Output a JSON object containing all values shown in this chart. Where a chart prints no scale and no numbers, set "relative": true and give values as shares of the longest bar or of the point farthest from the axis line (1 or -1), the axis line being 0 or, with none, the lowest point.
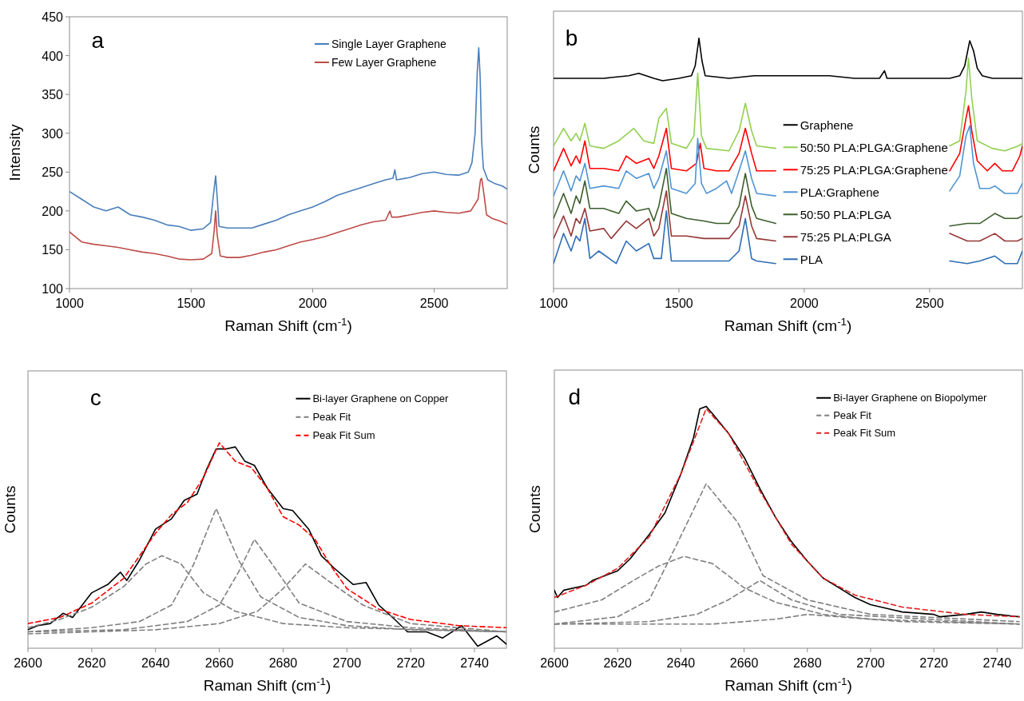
{
  "chart_data": [
    {
      "type": "line",
      "annotations": [
        "a"
      ],
      "xlabel": "Raman Shift (cm$^{-1}$)",
      "ylabel": "Intensity",
      "xlim": [
        1000,
        2800
      ],
      "xticks": [
        1000,
        1500,
        2000,
        2500
      ],
      "ylim": [
        100,
        450
      ],
      "yticks": [
        100,
        150,
        200,
        250,
        300,
        350,
        400,
        450
      ],
      "legend": "top right",
      "series": [
        {
          "name": "Single Layer Graphene",
          "color": "#4a7ebb",
          "x": [
            1000,
            1050,
            1100,
            1150,
            1200,
            1250,
            1300,
            1350,
            1400,
            1450,
            1500,
            1550,
            1580,
            1590,
            1601,
            1608,
            1615,
            1650,
            1700,
            1750,
            1800,
            1850,
            1900,
            1950,
            2000,
            2050,
            2100,
            2150,
            2200,
            2250,
            2300,
            2330,
            2338,
            2345,
            2400,
            2450,
            2500,
            2550,
            2600,
            2640,
            2655,
            2668,
            2677,
            2683,
            2689,
            2695,
            2702,
            2720,
            2750,
            2780,
            2800
          ],
          "values": [
            225,
            215,
            205,
            200,
            205,
            195,
            192,
            188,
            182,
            180,
            175,
            177,
            185,
            215,
            245,
            215,
            180,
            178,
            178,
            178,
            183,
            188,
            195,
            200,
            205,
            212,
            220,
            225,
            230,
            235,
            240,
            242,
            253,
            240,
            243,
            248,
            250,
            247,
            246,
            250,
            262,
            300,
            380,
            410,
            370,
            290,
            255,
            240,
            235,
            232,
            228
          ]
        },
        {
          "name": "Few Layer Graphene",
          "color": "#be4b48",
          "x": [
            1000,
            1050,
            1100,
            1150,
            1200,
            1250,
            1300,
            1350,
            1400,
            1450,
            1500,
            1550,
            1585,
            1595,
            1601,
            1607,
            1620,
            1650,
            1700,
            1750,
            1800,
            1850,
            1900,
            1950,
            2000,
            2050,
            2100,
            2150,
            2200,
            2250,
            2300,
            2318,
            2325,
            2350,
            2400,
            2450,
            2500,
            2550,
            2600,
            2650,
            2680,
            2690,
            2695,
            2705,
            2715,
            2740,
            2770,
            2800
          ],
          "values": [
            173,
            160,
            157,
            155,
            153,
            150,
            147,
            145,
            142,
            138,
            137,
            138,
            145,
            175,
            200,
            170,
            142,
            140,
            140,
            143,
            147,
            150,
            155,
            160,
            163,
            167,
            172,
            177,
            182,
            186,
            188,
            200,
            192,
            192,
            195,
            198,
            200,
            198,
            197,
            200,
            215,
            240,
            242,
            220,
            195,
            190,
            187,
            183
          ]
        }
      ]
    },
    {
      "type": "line",
      "annotations": [
        "b"
      ],
      "xlabel": "Raman Shift (cm$^{-1}$)",
      "ylabel": "Counts",
      "xlim": [
        1000,
        2870
      ],
      "xticks": [
        1000,
        1500,
        2000,
        2500
      ],
      "relative": true,
      "legend": "right",
      "series": [
        {
          "name": "Graphene",
          "color": "#000000",
          "x": [
            1000,
            1100,
            1200,
            1300,
            1340,
            1400,
            1435,
            1500,
            1550,
            1565,
            1580,
            1592,
            1605,
            1700,
            1800,
            1900,
            2000,
            2100,
            2200,
            2300,
            2320,
            2330,
            2400,
            2500,
            2580,
            2620,
            2640,
            2660,
            2675,
            2690,
            2710,
            2750,
            2800,
            2870
          ],
          "values": [
            0.84,
            0.84,
            0.84,
            0.85,
            0.86,
            0.84,
            0.83,
            0.84,
            0.85,
            0.89,
            1.0,
            0.91,
            0.85,
            0.84,
            0.85,
            0.85,
            0.85,
            0.85,
            0.84,
            0.84,
            0.87,
            0.84,
            0.84,
            0.84,
            0.84,
            0.85,
            0.89,
            0.99,
            0.95,
            0.88,
            0.85,
            0.84,
            0.84,
            0.84
          ]
        },
        {
          "name": "50:50 PLA:PLGA:Graphene",
          "color": "#92d050",
          "x": [
            1000,
            1040,
            1070,
            1090,
            1105,
            1125,
            1145,
            1200,
            1260,
            1320,
            1360,
            1400,
            1420,
            1450,
            1470,
            1530,
            1560,
            1575,
            1590,
            1610,
            1700,
            1740,
            1765,
            1790,
            1810,
            1886,
            2200,
            2580,
            2620,
            2645,
            2655,
            2668,
            2690,
            2750,
            2800,
            2855,
            2870
          ],
          "values": [
            0.57,
            0.64,
            0.59,
            0.62,
            0.59,
            0.66,
            0.57,
            0.56,
            0.59,
            0.64,
            0.59,
            0.58,
            0.68,
            0.72,
            0.58,
            0.56,
            0.61,
            0.86,
            0.61,
            0.56,
            0.55,
            0.63,
            0.74,
            0.63,
            0.57,
            0.56,
            null,
            0.57,
            0.59,
            0.79,
            0.92,
            0.76,
            0.59,
            0.56,
            0.55,
            0.57,
            0.58
          ]
        },
        {
          "name": "75:25 PLA:PLGA:Graphene",
          "color": "#ff0000",
          "x": [
            1000,
            1040,
            1070,
            1090,
            1105,
            1125,
            1145,
            1200,
            1260,
            1290,
            1330,
            1380,
            1400,
            1420,
            1450,
            1470,
            1530,
            1570,
            1585,
            1600,
            1650,
            1700,
            1740,
            1765,
            1790,
            1810,
            1886,
            2200,
            2580,
            2620,
            2645,
            2655,
            2668,
            2690,
            2730,
            2760,
            2790,
            2830,
            2860,
            2870
          ],
          "values": [
            0.47,
            0.56,
            0.49,
            0.53,
            0.5,
            0.59,
            0.48,
            0.48,
            0.47,
            0.53,
            0.5,
            0.52,
            0.48,
            0.53,
            0.64,
            0.48,
            0.47,
            0.5,
            0.58,
            0.48,
            0.47,
            0.47,
            0.54,
            0.64,
            0.54,
            0.47,
            0.47,
            null,
            0.47,
            0.54,
            0.68,
            0.73,
            0.63,
            0.51,
            0.47,
            0.5,
            0.47,
            0.47,
            0.53,
            0.57
          ]
        },
        {
          "name": "PLA:Graphene",
          "color": "#4f94d4",
          "x": [
            1000,
            1040,
            1070,
            1090,
            1105,
            1125,
            1145,
            1200,
            1260,
            1290,
            1330,
            1380,
            1400,
            1420,
            1450,
            1470,
            1530,
            1565,
            1575,
            1590,
            1610,
            1650,
            1690,
            1710,
            1740,
            1765,
            1790,
            1810,
            1886,
            2200,
            2580,
            2620,
            2645,
            2660,
            2675,
            2700,
            2740,
            2760,
            2800,
            2850,
            2870
          ],
          "values": [
            0.37,
            0.47,
            0.39,
            0.45,
            0.43,
            0.5,
            0.4,
            0.41,
            0.4,
            0.47,
            0.44,
            0.46,
            0.4,
            0.44,
            0.55,
            0.4,
            0.38,
            0.42,
            0.6,
            0.42,
            0.38,
            0.4,
            0.43,
            0.38,
            0.47,
            0.55,
            0.44,
            0.38,
            0.37,
            null,
            0.39,
            0.45,
            0.61,
            0.65,
            0.5,
            0.4,
            0.4,
            0.41,
            0.38,
            0.38,
            0.42
          ]
        },
        {
          "name": "50:50 PLA:PLGA",
          "color": "#3b5e2b",
          "x": [
            1000,
            1040,
            1070,
            1090,
            1105,
            1125,
            1145,
            1200,
            1260,
            1290,
            1330,
            1380,
            1400,
            1420,
            1450,
            1470,
            1530,
            1600,
            1650,
            1700,
            1740,
            1765,
            1790,
            1810,
            1886,
            2200,
            2580,
            2650,
            2700,
            2760,
            2800,
            2850,
            2870
          ],
          "values": [
            0.28,
            0.38,
            0.3,
            0.37,
            0.34,
            0.43,
            0.32,
            0.32,
            0.3,
            0.35,
            0.31,
            0.32,
            0.27,
            0.33,
            0.48,
            0.3,
            0.28,
            0.27,
            0.26,
            0.26,
            0.33,
            0.46,
            0.33,
            0.28,
            0.26,
            null,
            0.25,
            0.26,
            0.26,
            0.3,
            0.28,
            0.28,
            0.29
          ]
        },
        {
          "name": "75:25 PLA:PLGA",
          "color": "#953735",
          "x": [
            1000,
            1040,
            1070,
            1090,
            1105,
            1125,
            1145,
            1200,
            1230,
            1290,
            1330,
            1380,
            1400,
            1420,
            1450,
            1470,
            1530,
            1600,
            1700,
            1740,
            1765,
            1790,
            1810,
            1886,
            2200,
            2580,
            2650,
            2700,
            2760,
            2800,
            2850,
            2870
          ],
          "values": [
            0.2,
            0.29,
            0.21,
            0.28,
            0.26,
            0.32,
            0.23,
            0.24,
            0.2,
            0.27,
            0.24,
            0.28,
            0.21,
            0.24,
            0.39,
            0.21,
            0.21,
            0.2,
            0.2,
            0.25,
            0.37,
            0.25,
            0.2,
            0.19,
            null,
            0.22,
            0.19,
            0.19,
            0.22,
            0.19,
            0.19,
            0.2
          ]
        },
        {
          "name": "PLA",
          "color": "#2e6db4",
          "x": [
            1000,
            1040,
            1070,
            1090,
            1105,
            1125,
            1145,
            1180,
            1250,
            1290,
            1330,
            1380,
            1400,
            1430,
            1450,
            1470,
            1530,
            1600,
            1700,
            1740,
            1765,
            1790,
            1810,
            1886,
            2200,
            2580,
            2650,
            2700,
            2760,
            2800,
            2850,
            2870
          ],
          "values": [
            0.1,
            0.22,
            0.15,
            0.21,
            0.19,
            0.28,
            0.12,
            0.15,
            0.1,
            0.19,
            0.15,
            0.18,
            0.12,
            0.12,
            0.31,
            0.11,
            0.11,
            0.11,
            0.11,
            0.15,
            0.28,
            0.12,
            0.11,
            0.1,
            null,
            0.11,
            0.1,
            0.11,
            0.13,
            0.1,
            0.1,
            0.15
          ]
        }
      ]
    },
    {
      "type": "line",
      "annotations": [
        "c"
      ],
      "xlabel": "Raman Shift (cm$^{-1}$)",
      "ylabel": "Counts",
      "xlim": [
        2600,
        2750
      ],
      "xticks": [
        2600,
        2620,
        2640,
        2660,
        2680,
        2700,
        2720,
        2740
      ],
      "relative": true,
      "legend": "top right",
      "series": [
        {
          "name": "Bi-layer Graphene on Copper",
          "color": "#000000",
          "line_style": "solid",
          "x": [
            2600,
            2603,
            2607,
            2611,
            2614,
            2620,
            2625,
            2629,
            2631,
            2635,
            2640,
            2645,
            2649,
            2653,
            2656,
            2659,
            2662,
            2665,
            2668,
            2671,
            2675,
            2680,
            2683,
            2688,
            2692,
            2696,
            2702,
            2706,
            2710,
            2715,
            2719,
            2725,
            2730,
            2736,
            2741,
            2747,
            2750
          ],
          "values": [
            0.09,
            0.11,
            0.12,
            0.17,
            0.15,
            0.27,
            0.31,
            0.37,
            0.33,
            0.43,
            0.58,
            0.63,
            0.72,
            0.75,
            0.87,
            0.97,
            0.97,
            0.98,
            0.91,
            0.89,
            0.78,
            0.68,
            0.67,
            0.58,
            0.45,
            0.39,
            0.31,
            0.32,
            0.21,
            0.14,
            0.08,
            0.08,
            0.05,
            0.11,
            0.01,
            0.06,
            0.02
          ]
        },
        {
          "name": "Peak Fit",
          "color": "#7f7f7f",
          "line_style": "dashed",
          "x": [
            2600,
            2610,
            2620,
            2630,
            2637,
            2642,
            2648,
            2655,
            2665,
            2680,
            2700,
            2750
          ],
          "values": [
            0.1,
            0.14,
            0.2,
            0.3,
            0.41,
            0.45,
            0.41,
            0.27,
            0.18,
            0.12,
            0.1,
            0.08
          ]
        },
        {
          "color": "#7f7f7f",
          "line_style": "dashed",
          "x": [
            2600,
            2620,
            2635,
            2645,
            2652,
            2659,
            2666,
            2673,
            2685,
            2700,
            2720,
            2750
          ],
          "values": [
            0.08,
            0.1,
            0.13,
            0.21,
            0.41,
            0.68,
            0.43,
            0.25,
            0.15,
            0.11,
            0.09,
            0.08
          ]
        },
        {
          "color": "#7f7f7f",
          "line_style": "dashed",
          "x": [
            2600,
            2630,
            2650,
            2660,
            2666,
            2671,
            2677,
            2685,
            2700,
            2720,
            2750
          ],
          "values": [
            0.08,
            0.09,
            0.13,
            0.21,
            0.37,
            0.53,
            0.4,
            0.22,
            0.13,
            0.1,
            0.08
          ]
        },
        {
          "color": "#7f7f7f",
          "line_style": "dashed",
          "x": [
            2600,
            2640,
            2660,
            2672,
            2680,
            2687,
            2694,
            2705,
            2720,
            2750
          ],
          "values": [
            0.07,
            0.09,
            0.12,
            0.18,
            0.29,
            0.41,
            0.33,
            0.21,
            0.12,
            0.08
          ]
        },
        {
          "name": "Peak Fit Sum",
          "color": "#ff0000",
          "line_style": "dashed",
          "x": [
            2600,
            2610,
            2620,
            2630,
            2640,
            2645,
            2650,
            2655,
            2660,
            2665,
            2670,
            2675,
            2680,
            2685,
            2690,
            2695,
            2700,
            2710,
            2720,
            2735,
            2750
          ],
          "values": [
            0.12,
            0.15,
            0.22,
            0.34,
            0.56,
            0.65,
            0.71,
            0.83,
            1.0,
            0.91,
            0.88,
            0.78,
            0.64,
            0.6,
            0.53,
            0.4,
            0.29,
            0.19,
            0.14,
            0.11,
            0.1
          ]
        }
      ]
    },
    {
      "type": "line",
      "annotations": [
        "d"
      ],
      "xlabel": "Raman Shift (cm$^{-1}$)",
      "ylabel": "Counts",
      "xlim": [
        2600,
        2748
      ],
      "xticks": [
        2600,
        2620,
        2640,
        2660,
        2680,
        2700,
        2720,
        2740
      ],
      "relative": true,
      "legend": "top right",
      "series": [
        {
          "name": "Bi-layer Graphene on Biopolymer",
          "color": "#000000",
          "line_style": "solid",
          "x": [
            2600,
            2601,
            2603,
            2610,
            2612,
            2620,
            2624,
            2630,
            2635,
            2640,
            2644,
            2646,
            2648,
            2650,
            2655,
            2660,
            2665,
            2670,
            2675,
            2680,
            2685,
            2690,
            2695,
            2700,
            2710,
            2720,
            2722,
            2730,
            2735,
            2740,
            2747
          ],
          "values": [
            0.24,
            0.21,
            0.24,
            0.26,
            0.28,
            0.32,
            0.37,
            0.47,
            0.56,
            0.72,
            0.87,
            0.99,
            1.0,
            0.97,
            0.89,
            0.79,
            0.66,
            0.54,
            0.44,
            0.36,
            0.29,
            0.25,
            0.21,
            0.18,
            0.15,
            0.14,
            0.13,
            0.14,
            0.15,
            0.14,
            0.13
          ]
        },
        {
          "name": "Peak Fit",
          "color": "#7f7f7f",
          "line_style": "dashed",
          "x": [
            2600,
            2615,
            2625,
            2633,
            2641,
            2650,
            2660,
            2670,
            2685,
            2700,
            2747
          ],
          "values": [
            0.15,
            0.2,
            0.28,
            0.34,
            0.38,
            0.35,
            0.25,
            0.19,
            0.14,
            0.12,
            0.1
          ]
        },
        {
          "color": "#7f7f7f",
          "line_style": "dashed",
          "x": [
            2600,
            2620,
            2630,
            2638,
            2648,
            2658,
            2666,
            2680,
            2700,
            2747
          ],
          "values": [
            0.1,
            0.13,
            0.2,
            0.41,
            0.68,
            0.52,
            0.3,
            0.2,
            0.14,
            0.11
          ]
        },
        {
          "color": "#7f7f7f",
          "line_style": "dashed",
          "x": [
            2600,
            2630,
            2645,
            2655,
            2665,
            2675,
            2690,
            2747
          ],
          "values": [
            0.1,
            0.11,
            0.14,
            0.2,
            0.28,
            0.2,
            0.14,
            0.1
          ]
        },
        {
          "color": "#7f7f7f",
          "line_style": "dashed",
          "x": [
            2600,
            2650,
            2670,
            2680,
            2690,
            2710,
            2747
          ],
          "values": [
            0.1,
            0.1,
            0.12,
            0.14,
            0.13,
            0.11,
            0.1
          ]
        },
        {
          "name": "Peak Fit Sum",
          "color": "#e02020",
          "line_style": "dashed",
          "x": [
            2600,
            2610,
            2620,
            2630,
            2640,
            2648,
            2655,
            2665,
            2675,
            2685,
            2695,
            2710,
            2730,
            2747
          ],
          "values": [
            0.21,
            0.26,
            0.33,
            0.46,
            0.72,
            0.99,
            0.89,
            0.65,
            0.43,
            0.29,
            0.22,
            0.17,
            0.14,
            0.13
          ]
        }
      ]
    }
  ]
}
